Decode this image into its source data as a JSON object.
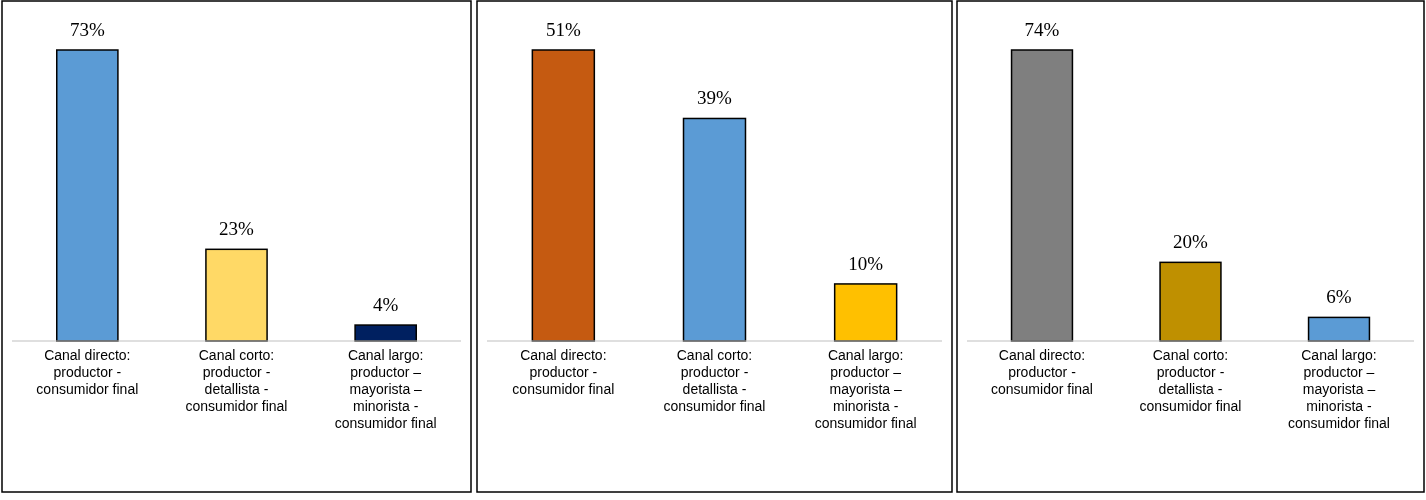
{
  "chart_data": [
    {
      "type": "bar",
      "categories": [
        "Canal directo: productor - consumidor final",
        "Canal corto: productor - detallista - consumidor final",
        "Canal largo: productor – mayorista – minorista - consumidor final"
      ],
      "values": [
        73,
        23,
        4
      ],
      "colors": [
        "#5b9bd5",
        "#ffd966",
        "#002060"
      ],
      "data_labels": true,
      "value_labels": [
        "73%",
        "23%",
        "4%"
      ]
    },
    {
      "type": "bar",
      "categories": [
        "Canal directo: productor - consumidor final",
        "Canal corto: productor - detallista - consumidor final",
        "Canal largo: productor – mayorista – minorista - consumidor final"
      ],
      "values": [
        51,
        39,
        10
      ],
      "colors": [
        "#c55a11",
        "#5b9bd5",
        "#ffc000"
      ],
      "data_labels": true,
      "value_labels": [
        "51%",
        "39%",
        "10%"
      ]
    },
    {
      "type": "bar",
      "categories": [
        "Canal directo: productor - consumidor final",
        "Canal corto: productor - detallista - consumidor final",
        "Canal largo: productor – mayorista – minorista - consumidor final"
      ],
      "values": [
        74,
        20,
        6
      ],
      "colors": [
        "#7f7f7f",
        "#bf9000",
        "#5b9bd5"
      ],
      "data_labels": true,
      "value_labels": [
        "74%",
        "20%",
        "6%"
      ]
    }
  ]
}
